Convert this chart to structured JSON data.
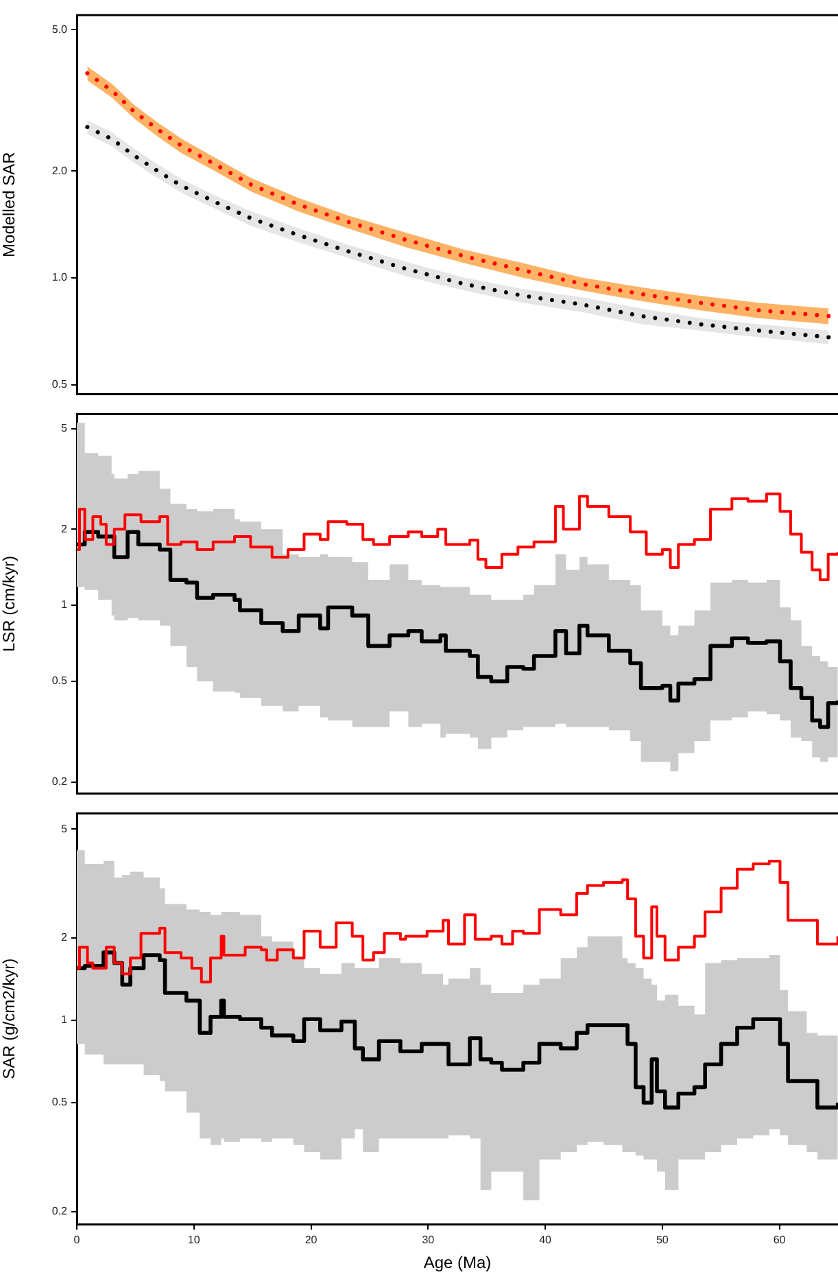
{
  "chart_data": [
    {
      "type": "line",
      "ylabel": "Modelled SAR",
      "log": true,
      "grid": false,
      "legend": false,
      "tick_labels": "y",
      "line_style": "dotted",
      "marker": "none",
      "xlim": [
        0,
        65
      ],
      "ylim": [
        0.47,
        5.5
      ],
      "yticks": [
        {
          "value": 0.5,
          "label": "0.5"
        },
        {
          "value": 1,
          "label": "1.0"
        },
        {
          "value": 2,
          "label": "2.0"
        },
        {
          "value": 5,
          "label": "5.0"
        }
      ],
      "x": [
        0.9,
        3.0,
        4.9,
        6.9,
        8.9,
        11.9,
        14.9,
        18.9,
        23.1,
        28.1,
        33.1,
        38.1,
        43.2,
        48.2,
        53.2,
        58.2,
        64.2
      ],
      "series": [
        {
          "color": "#ff0000",
          "values": [
            3.77,
            3.37,
            2.94,
            2.62,
            2.36,
            2.08,
            1.83,
            1.61,
            1.44,
            1.28,
            1.15,
            1.05,
            0.96,
            0.9,
            0.85,
            0.81,
            0.78
          ],
          "upper": [
            3.94,
            3.52,
            3.07,
            2.74,
            2.47,
            2.17,
            1.91,
            1.68,
            1.5,
            1.34,
            1.2,
            1.1,
            1.0,
            0.94,
            0.89,
            0.85,
            0.82
          ],
          "lower": [
            3.6,
            3.22,
            2.81,
            2.5,
            2.25,
            1.99,
            1.75,
            1.54,
            1.38,
            1.22,
            1.1,
            1.0,
            0.92,
            0.86,
            0.81,
            0.77,
            0.74
          ]
        },
        {
          "color": "#000000",
          "values": [
            2.66,
            2.46,
            2.21,
            2.0,
            1.82,
            1.63,
            1.47,
            1.32,
            1.19,
            1.06,
            0.96,
            0.89,
            0.84,
            0.78,
            0.74,
            0.71,
            0.68
          ],
          "upper": [
            2.78,
            2.57,
            2.31,
            2.09,
            1.9,
            1.7,
            1.54,
            1.38,
            1.24,
            1.11,
            1.0,
            0.93,
            0.88,
            0.82,
            0.77,
            0.74,
            0.71
          ],
          "lower": [
            2.54,
            2.35,
            2.11,
            1.91,
            1.74,
            1.56,
            1.4,
            1.26,
            1.14,
            1.01,
            0.92,
            0.85,
            0.8,
            0.74,
            0.71,
            0.68,
            0.65
          ]
        }
      ]
    },
    {
      "type": "step",
      "ylabel": "LSR (cm/kyr)",
      "log": true,
      "grid": false,
      "legend": false,
      "tick_labels": "y",
      "line_style": "solid",
      "marker": "none",
      "xlim": [
        0,
        65
      ],
      "ylim": [
        0.18,
        5.7
      ],
      "yticks": [
        0.2,
        0.5,
        1,
        2,
        5
      ],
      "series": [
        {
          "color": "#ff0000",
          "x": [
            0.0,
            0.23,
            0.68,
            1.37,
            2.05,
            2.51,
            3.2,
            4.11,
            5.48,
            7.08,
            7.76,
            8.9,
            10.27,
            11.64,
            13.47,
            14.84,
            16.67,
            18.04,
            19.41,
            20.78,
            21.46,
            23.06,
            24.43,
            25.34,
            26.71,
            28.31,
            29.45,
            30.82,
            31.51,
            33.56,
            34.25,
            34.93,
            36.3,
            37.67,
            39.04,
            40.87,
            41.55,
            42.92,
            43.61,
            45.43,
            47.26,
            48.63,
            50.0,
            50.68,
            51.37,
            52.74,
            54.11,
            55.94,
            57.31,
            58.9,
            60.05,
            60.96,
            61.87,
            62.79,
            63.47,
            64.16,
            64.98
          ],
          "values": [
            1.66,
            2.4,
            1.82,
            2.24,
            2.09,
            1.74,
            2.0,
            2.28,
            2.14,
            2.24,
            1.74,
            1.78,
            1.66,
            1.78,
            1.87,
            1.7,
            1.55,
            1.66,
            1.91,
            1.82,
            2.14,
            2.09,
            1.82,
            1.74,
            1.87,
            1.95,
            1.87,
            2.0,
            1.74,
            1.81,
            1.52,
            1.41,
            1.59,
            1.7,
            1.78,
            2.46,
            2.0,
            2.7,
            2.46,
            2.24,
            1.95,
            1.59,
            1.66,
            1.41,
            1.74,
            1.82,
            2.4,
            2.64,
            2.58,
            2.76,
            2.35,
            1.91,
            1.62,
            1.38,
            1.26,
            1.59,
            1.62
          ]
        },
        {
          "color": "#000000",
          "x": [
            0.0,
            0.68,
            1.83,
            2.97,
            3.2,
            4.34,
            5.25,
            7.08,
            7.99,
            9.36,
            10.27,
            11.64,
            13.47,
            13.93,
            15.75,
            17.58,
            18.95,
            20.78,
            21.46,
            23.52,
            24.89,
            26.71,
            28.31,
            29.45,
            31.05,
            31.51,
            33.56,
            34.25,
            35.39,
            36.76,
            38.13,
            39.04,
            40.87,
            41.78,
            42.92,
            43.61,
            45.43,
            47.26,
            48.17,
            50.0,
            50.68,
            51.37,
            52.74,
            54.11,
            55.94,
            57.31,
            58.9,
            60.05,
            60.96,
            61.87,
            62.79,
            63.47,
            64.16,
            64.98
          ],
          "values": [
            1.74,
            1.95,
            1.87,
            1.87,
            1.55,
            1.95,
            1.74,
            1.66,
            1.26,
            1.23,
            1.07,
            1.1,
            1.05,
            0.955,
            0.85,
            0.79,
            0.91,
            0.81,
            0.98,
            0.91,
            0.69,
            0.76,
            0.79,
            0.72,
            0.76,
            0.66,
            0.63,
            0.52,
            0.5,
            0.57,
            0.56,
            0.63,
            0.79,
            0.645,
            0.83,
            0.76,
            0.66,
            0.59,
            0.47,
            0.48,
            0.42,
            0.49,
            0.51,
            0.69,
            0.74,
            0.71,
            0.72,
            0.6,
            0.47,
            0.43,
            0.35,
            0.33,
            0.41,
            0.42
          ],
          "upper": [
            5.27,
            4.0,
            3.9,
            3.3,
            3.17,
            3.3,
            3.4,
            2.89,
            2.52,
            2.4,
            2.35,
            2.4,
            2.19,
            2.14,
            2.0,
            1.59,
            1.55,
            1.59,
            1.55,
            1.48,
            1.26,
            1.45,
            1.26,
            1.2,
            1.18,
            1.18,
            1.1,
            1.1,
            1.05,
            1.05,
            1.1,
            1.2,
            1.59,
            1.38,
            1.55,
            1.45,
            1.26,
            1.2,
            0.955,
            0.83,
            0.76,
            0.83,
            0.955,
            1.23,
            1.26,
            1.23,
            1.26,
            0.98,
            0.87,
            0.69,
            0.63,
            0.6,
            0.57,
            0.56
          ],
          "lower": [
            1.18,
            1.15,
            1.05,
            0.91,
            0.87,
            0.89,
            0.87,
            0.83,
            0.69,
            0.57,
            0.5,
            0.456,
            0.45,
            0.43,
            0.4,
            0.38,
            0.4,
            0.36,
            0.35,
            0.33,
            0.33,
            0.38,
            0.33,
            0.34,
            0.3,
            0.31,
            0.3,
            0.27,
            0.3,
            0.32,
            0.33,
            0.33,
            0.34,
            0.33,
            0.33,
            0.33,
            0.32,
            0.29,
            0.24,
            0.24,
            0.22,
            0.26,
            0.29,
            0.35,
            0.36,
            0.38,
            0.37,
            0.35,
            0.3,
            0.29,
            0.25,
            0.24,
            0.25,
            0.26
          ]
        }
      ]
    },
    {
      "type": "step",
      "xlabel": "Age (Ma)",
      "ylabel": "SAR (g/cm2/kyr)",
      "log": true,
      "grid": false,
      "legend": false,
      "line_style": "solid",
      "marker": "none",
      "xlim": [
        0,
        65
      ],
      "xticks": [
        0,
        10,
        20,
        30,
        40,
        50,
        60
      ],
      "ylim": [
        0.18,
        5.7
      ],
      "yticks": [
        0.2,
        0.5,
        1,
        2,
        5
      ],
      "series": [
        {
          "color": "#ff0000",
          "x": [
            0.0,
            0.23,
            0.91,
            1.37,
            2.51,
            3.2,
            3.88,
            4.57,
            5.48,
            7.08,
            7.53,
            8.9,
            9.82,
            10.64,
            11.42,
            12.33,
            12.56,
            14.38,
            15.75,
            16.21,
            17.12,
            18.49,
            19.41,
            20.78,
            22.15,
            23.52,
            24.43,
            25.34,
            26.26,
            27.63,
            28.08,
            29.91,
            31.28,
            31.74,
            33.11,
            34.02,
            35.39,
            36.3,
            37.21,
            38.13,
            39.5,
            41.32,
            42.69,
            43.61,
            44.98,
            46.58,
            47.03,
            47.72,
            48.4,
            49.09,
            49.54,
            50.23,
            51.37,
            52.74,
            53.65,
            55.02,
            56.39,
            57.76,
            59.13,
            60.05,
            60.73,
            62.33,
            63.24,
            64.98
          ],
          "values": [
            1.55,
            1.85,
            1.62,
            1.55,
            1.85,
            1.62,
            1.48,
            1.69,
            2.08,
            2.17,
            1.77,
            1.69,
            1.55,
            1.38,
            1.69,
            2.03,
            1.73,
            1.85,
            1.81,
            1.66,
            1.81,
            1.69,
            2.12,
            1.85,
            2.27,
            2.03,
            1.66,
            1.77,
            2.08,
            1.98,
            2.03,
            2.12,
            2.32,
            1.9,
            2.43,
            1.98,
            2.03,
            1.9,
            2.12,
            2.08,
            2.54,
            2.43,
            2.91,
            3.11,
            3.19,
            3.26,
            2.78,
            2.03,
            1.69,
            2.6,
            2.03,
            1.66,
            1.85,
            2.03,
            2.49,
            3.04,
            3.57,
            3.73,
            3.82,
            3.19,
            2.32,
            2.32,
            1.9,
            2.03
          ]
        },
        {
          "color": "#000000",
          "x": [
            0.0,
            0.68,
            2.28,
            3.2,
            3.88,
            4.57,
            5.71,
            7.08,
            7.53,
            9.36,
            10.5,
            11.42,
            12.33,
            12.56,
            13.93,
            15.75,
            16.67,
            18.49,
            19.41,
            20.78,
            22.6,
            23.74,
            24.43,
            25.8,
            27.63,
            29.45,
            31.28,
            31.74,
            33.56,
            34.47,
            35.39,
            36.3,
            38.13,
            39.5,
            41.32,
            42.69,
            43.61,
            44.98,
            46.58,
            47.03,
            47.72,
            48.4,
            49.09,
            49.54,
            50.23,
            51.37,
            52.74,
            53.65,
            55.02,
            56.39,
            57.76,
            59.13,
            60.05,
            60.73,
            62.33,
            63.24,
            64.98
          ],
          "values": [
            1.55,
            1.58,
            1.77,
            1.62,
            1.35,
            1.55,
            1.73,
            1.66,
            1.26,
            1.18,
            0.9,
            1.03,
            1.18,
            1.03,
            1.01,
            0.94,
            0.88,
            0.84,
            1.01,
            0.92,
            0.99,
            0.79,
            0.72,
            0.84,
            0.77,
            0.82,
            0.82,
            0.69,
            0.86,
            0.72,
            0.7,
            0.66,
            0.7,
            0.82,
            0.79,
            0.9,
            0.96,
            0.96,
            0.96,
            0.82,
            0.57,
            0.5,
            0.72,
            0.55,
            0.48,
            0.54,
            0.57,
            0.69,
            0.82,
            0.94,
            1.01,
            1.01,
            0.82,
            0.6,
            0.6,
            0.48,
            0.5
          ],
          "upper": [
            4.18,
            3.73,
            3.82,
            3.33,
            3.4,
            3.49,
            3.33,
            3.04,
            2.66,
            2.54,
            2.49,
            2.43,
            2.49,
            2.49,
            2.43,
            2.03,
            1.94,
            1.69,
            1.55,
            1.48,
            1.62,
            1.55,
            1.55,
            1.69,
            1.62,
            1.48,
            1.35,
            1.42,
            1.55,
            1.35,
            1.26,
            1.26,
            1.35,
            1.42,
            1.69,
            1.85,
            2.03,
            2.03,
            1.69,
            1.62,
            1.55,
            1.42,
            1.35,
            1.18,
            1.24,
            1.13,
            1.05,
            1.62,
            1.66,
            1.69,
            1.69,
            1.73,
            1.29,
            1.08,
            0.9,
            0.88,
            0.88
          ],
          "lower": [
            0.82,
            0.75,
            0.69,
            0.69,
            0.69,
            0.69,
            0.63,
            0.6,
            0.55,
            0.46,
            0.37,
            0.35,
            0.37,
            0.36,
            0.37,
            0.36,
            0.37,
            0.35,
            0.33,
            0.31,
            0.37,
            0.4,
            0.33,
            0.37,
            0.37,
            0.37,
            0.37,
            0.38,
            0.37,
            0.24,
            0.28,
            0.28,
            0.22,
            0.31,
            0.33,
            0.35,
            0.36,
            0.35,
            0.33,
            0.33,
            0.32,
            0.31,
            0.31,
            0.28,
            0.24,
            0.31,
            0.31,
            0.33,
            0.35,
            0.37,
            0.38,
            0.4,
            0.38,
            0.35,
            0.33,
            0.31,
            0.33
          ]
        }
      ]
    }
  ]
}
